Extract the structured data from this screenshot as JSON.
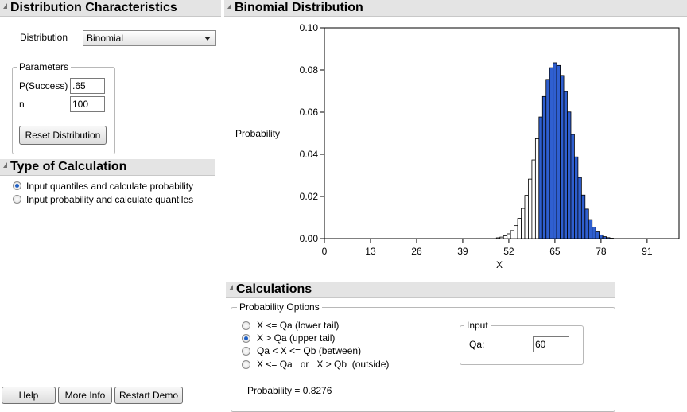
{
  "dist_panel": {
    "title": "Distribution Characteristics",
    "distribution_label": "Distribution",
    "distribution_value": "Binomial",
    "params_legend": "Parameters",
    "p_label": "P(Success)",
    "p_value": ".65",
    "n_label": "n",
    "n_value": "100",
    "reset_label": "Reset Distribution"
  },
  "calc_type": {
    "title": "Type of Calculation",
    "options": [
      {
        "label": "Input quantiles and calculate probability",
        "selected": true
      },
      {
        "label": "Input probability and calculate quantiles",
        "selected": false
      }
    ]
  },
  "footer": {
    "help_label": "Help",
    "more_info_label": "More Info",
    "restart_label": "Restart Demo"
  },
  "chart_panel": {
    "title": "Binomial Distribution"
  },
  "chart_data": {
    "type": "bar",
    "xlabel": "X",
    "ylabel": "Probability",
    "xlim": [
      0,
      100
    ],
    "ylim": [
      0,
      0.1
    ],
    "x_ticks": [
      "0",
      "13",
      "26",
      "39",
      "52",
      "65",
      "78",
      "91"
    ],
    "y_ticks": [
      "0.00",
      "0.02",
      "0.04",
      "0.06",
      "0.08",
      "0.10"
    ],
    "n": 100,
    "p": 0.65,
    "highlight_above": 60,
    "colors": {
      "highlight": "#2f5fd0",
      "normal": "#ffffff",
      "outline": "#000000"
    }
  },
  "calculations": {
    "title": "Calculations",
    "prob_options_legend": "Probability Options",
    "options": [
      {
        "label": "X <= Qa (lower tail)",
        "selected": false
      },
      {
        "label": "X > Qa (upper tail)",
        "selected": true
      },
      {
        "label": "Qa < X <= Qb (between)",
        "selected": false
      },
      {
        "label": "X <= Qa   or   X > Qb  (outside)",
        "selected": false
      }
    ],
    "input_legend": "Input",
    "qa_label": "Qa:",
    "qa_value": "60",
    "probability_text": "Probability = 0.8276"
  }
}
